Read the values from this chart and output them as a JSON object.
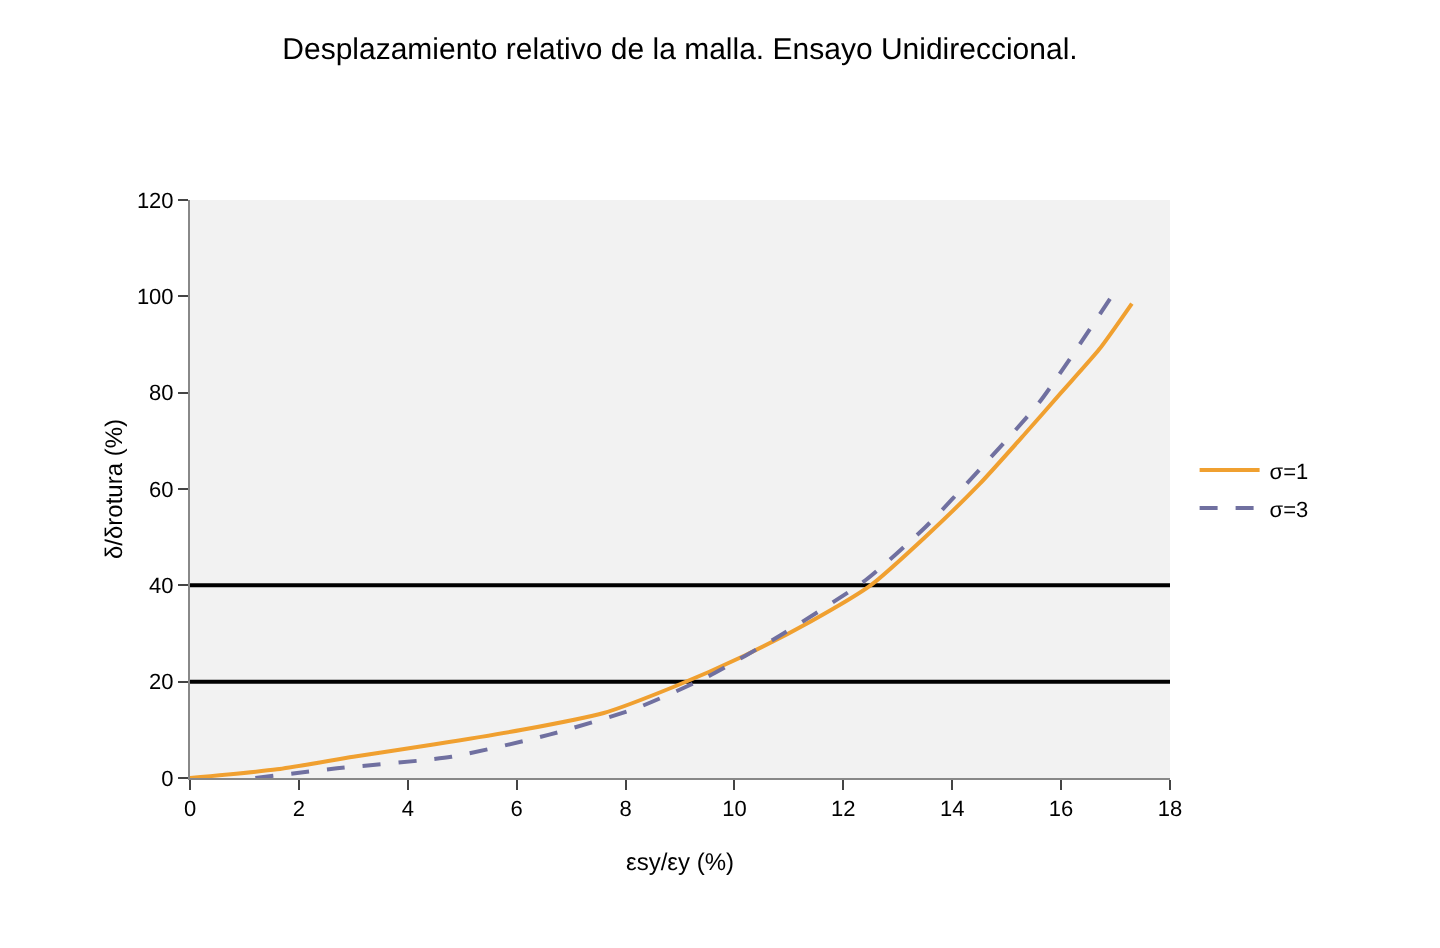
{
  "chart_data": {
    "type": "line",
    "title": "Desplazamiento relativo de la malla. Ensayo Unidireccional.",
    "xlabel": "εsy/εy (%)",
    "ylabel": "δ/δrotura (%)",
    "xlim": [
      0,
      18
    ],
    "xticks": [
      0,
      2,
      4,
      6,
      8,
      10,
      12,
      14,
      16,
      18
    ],
    "ylim": [
      0,
      120
    ],
    "yticks": [
      0,
      20,
      40,
      60,
      80,
      100,
      120
    ],
    "series": [
      {
        "name": "σ=1",
        "color": "#f0a030",
        "line_style": "solid",
        "x": [
          0,
          1.6,
          3,
          4.5,
          6.1,
          7.6,
          8.9,
          10.2,
          11.4,
          12.5,
          13.5,
          14.5,
          15.3,
          16,
          16.7,
          17.3
        ],
        "values": [
          0,
          1.8,
          4.4,
          7,
          10,
          13.5,
          19,
          25.5,
          32.5,
          40,
          50,
          61,
          71,
          80,
          89,
          98.5
        ]
      },
      {
        "name": "σ=3",
        "color": "#7070a0",
        "line_style": "dashed",
        "x": [
          1.2,
          2.7,
          4.8,
          6.6,
          8.2,
          9.5,
          10.9,
          12.4,
          13.5,
          14.5,
          15.6,
          16.9
        ],
        "values": [
          0,
          2,
          4.4,
          9,
          14.5,
          21,
          30,
          41,
          52,
          64,
          78,
          99.5
        ]
      }
    ],
    "ref_lines": [
      {
        "axis": "y",
        "value": 20,
        "color": "#000000"
      },
      {
        "axis": "y",
        "value": 40,
        "color": "#000000"
      }
    ],
    "grid": false,
    "legend": "right",
    "marker": "none"
  }
}
